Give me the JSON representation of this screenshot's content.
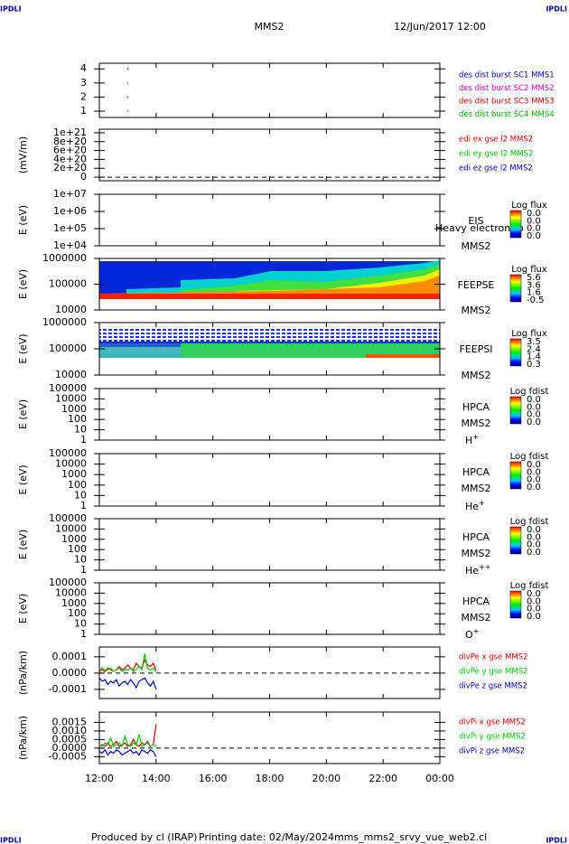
{
  "header": {
    "corner_left": "IPDLI",
    "corner_right": "IPDLI",
    "mission": "MMS2",
    "date": "12/Jun/2017 12:00"
  },
  "footer": {
    "producer": "Produced by cl (IRAP)",
    "printing": "Printing date: 02/May/2024",
    "file": "mms_mms2_srvy_vue_web2.cl",
    "corner_left": "IPDLI",
    "corner_right": "IPDLI"
  },
  "chart_data": [
    {
      "type": "scatter",
      "ylim": [
        0.55,
        4.4
      ],
      "yticks": [
        1,
        2,
        3,
        4
      ],
      "xlim": [
        12,
        24
      ],
      "series": [
        {
          "name": "des dist burst SC1 MMS1",
          "color": "#0000cc",
          "x": [
            13.0
          ],
          "values": [
            4
          ]
        },
        {
          "name": "des dist burst SC2 MMS2",
          "color": "#cc00cc",
          "x": [
            13.0
          ],
          "values": [
            3
          ]
        },
        {
          "name": "des dist burst SC3 MMS3",
          "color": "#cc0000",
          "x": [
            13.0
          ],
          "values": [
            2
          ]
        },
        {
          "name": "des dist burst SC4 MMS4",
          "color": "#00b000",
          "x": [
            13.0
          ],
          "values": [
            1
          ]
        }
      ]
    },
    {
      "type": "line",
      "ylabel": "(mV/m)",
      "ylim": [
        -8e+19,
        1.08e+21
      ],
      "zero_line": true,
      "yticks": [
        {
          "value": 1e+21,
          "label": "1e+21"
        },
        {
          "value": 8e+20,
          "label": "8e+20"
        },
        {
          "value": 6e+20,
          "label": "6e+20"
        },
        {
          "value": 4e+20,
          "label": "4e+20"
        },
        {
          "value": 2e+20,
          "label": "2e+20"
        },
        0
      ],
      "series": [
        {
          "name": "edi ex gse l2 MMS2",
          "color": "#dd0000"
        },
        {
          "name": "edi ey gse l2 MMS2",
          "color": "#00bb00"
        },
        {
          "name": "edi ez gse l2 MMS2",
          "color": "#0000cc"
        }
      ]
    },
    {
      "type": "spectrogram",
      "ylabel": "E (eV)",
      "log": true,
      "ylim": [
        10000,
        10000000
      ],
      "yticks": [
        {
          "value": 10000000,
          "label": "1e+07"
        },
        {
          "value": 1000000,
          "label": "1e+06"
        },
        {
          "value": 100000,
          "label": "1e+05"
        },
        {
          "value": 10000,
          "label": "1e+04"
        }
      ],
      "instrument": "EIS",
      "spacecraft": "MMS2",
      "note": "Heavy electron to",
      "colorbar": {
        "title": "Log flux",
        "labels": [
          "0.0",
          "0.0",
          "0.0",
          "0.0"
        ]
      }
    },
    {
      "type": "spectrogram",
      "ylabel": "E (eV)",
      "log": true,
      "ylim": [
        10000,
        1000000
      ],
      "yticks": [
        1000000,
        100000,
        10000
      ],
      "instrument": "FEEPSE",
      "spacecraft": "MMS2",
      "colorbar": {
        "title": "Log flux",
        "labels": [
          "5.6",
          "3.6",
          "1.6",
          "-0.5"
        ]
      }
    },
    {
      "type": "spectrogram",
      "ylabel": "E (eV)",
      "log": true,
      "ylim": [
        10000,
        1000000
      ],
      "yticks": [
        1000000,
        100000,
        10000
      ],
      "instrument": "FEEPSI",
      "spacecraft": "MMS2",
      "colorbar": {
        "title": "Log flux",
        "labels": [
          "3.5",
          "2.4",
          "1.4",
          "0.3"
        ]
      }
    },
    {
      "type": "spectrogram",
      "ylabel": "E (eV)",
      "log": true,
      "ylim": [
        1,
        100000
      ],
      "yticks": [
        100000,
        10000,
        1000,
        100,
        10,
        1
      ],
      "instrument": "HPCA",
      "spacecraft": "MMS2",
      "species": {
        "base": "H",
        "charge": "+"
      },
      "colorbar": {
        "title": "Log fdist",
        "labels": [
          "0.0",
          "0.0",
          "0.0",
          "0.0"
        ]
      }
    },
    {
      "type": "spectrogram",
      "ylabel": "E (eV)",
      "log": true,
      "ylim": [
        1,
        100000
      ],
      "yticks": [
        100000,
        10000,
        1000,
        100,
        10,
        1
      ],
      "instrument": "HPCA",
      "spacecraft": "MMS2",
      "species": {
        "base": "He",
        "charge": "+"
      },
      "colorbar": {
        "title": "Log fdist",
        "labels": [
          "0.0",
          "0.0",
          "0.0",
          "0.0"
        ]
      }
    },
    {
      "type": "spectrogram",
      "ylabel": "E (eV)",
      "log": true,
      "ylim": [
        1,
        100000
      ],
      "yticks": [
        100000,
        10000,
        1000,
        100,
        10,
        1
      ],
      "instrument": "HPCA",
      "spacecraft": "MMS2",
      "species": {
        "base": "He",
        "charge": "++"
      },
      "colorbar": {
        "title": "Log fdist",
        "labels": [
          "0.0",
          "0.0",
          "0.0",
          "0.0"
        ]
      }
    },
    {
      "type": "spectrogram",
      "ylabel": "E (eV)",
      "log": true,
      "ylim": [
        1,
        100000
      ],
      "yticks": [
        100000,
        10000,
        1000,
        100,
        10,
        1
      ],
      "instrument": "HPCA",
      "spacecraft": "MMS2",
      "species": {
        "base": "O",
        "charge": "+"
      },
      "colorbar": {
        "title": "Log fdist",
        "labels": [
          "0.0",
          "0.0",
          "0.0",
          "0.0"
        ]
      }
    },
    {
      "type": "line",
      "ylabel": "(nPa/km)",
      "ylim": [
        -0.000156,
        0.00016
      ],
      "zero_line": true,
      "xlim": [
        12,
        24
      ],
      "yticks": [
        0.0001,
        {
          "value": 0,
          "label": "0.0000"
        },
        -0.0001
      ],
      "x": [
        12.0,
        12.1,
        12.2,
        12.3,
        12.4,
        12.5,
        12.6,
        12.7,
        12.8,
        12.9,
        13.0,
        13.1,
        13.2,
        13.3,
        13.4,
        13.5,
        13.6,
        13.7,
        13.8,
        13.9,
        14.0
      ],
      "series": [
        {
          "name": "divPe x gse MMS2",
          "color": "#dd0000",
          "values": [
            1e-05,
            2e-05,
            1e-05,
            3e-05,
            2e-05,
            1e-05,
            2e-05,
            4e-05,
            2e-05,
            3e-05,
            5e-05,
            3e-05,
            2e-05,
            6e-05,
            4e-05,
            3e-05,
            8e-05,
            5e-05,
            4e-05,
            6e-05,
            2e-05
          ]
        },
        {
          "name": "divPe y gse MMS2",
          "color": "#00cc00",
          "values": [
            2e-05,
            3e-05,
            2e-05,
            2e-05,
            3e-05,
            1e-05,
            2e-05,
            3e-05,
            1e-05,
            2e-05,
            2e-05,
            3e-05,
            1e-05,
            2e-05,
            4e-05,
            2e-05,
            0.00012,
            3e-05,
            2e-05,
            3e-05,
            1e-05
          ]
        },
        {
          "name": "divPe z gse MMS2",
          "color": "#0000cc",
          "values": [
            -3e-05,
            -5e-05,
            -4e-05,
            -7e-05,
            -5e-05,
            -6e-05,
            -4e-05,
            -8e-05,
            -6e-05,
            -5e-05,
            -7e-05,
            -4e-05,
            -6e-05,
            -9e-05,
            -5e-05,
            -4e-05,
            -3e-05,
            -6e-05,
            -8e-05,
            -5e-05,
            -0.0001
          ]
        }
      ]
    },
    {
      "type": "line",
      "ylabel": "(nPa/km)",
      "ylim": [
        -0.0009,
        0.0021
      ],
      "zero_line": true,
      "xlim": [
        12,
        24
      ],
      "yticks": [
        0.0015,
        {
          "value": 0.001,
          "label": "0.0010"
        },
        0.0005,
        {
          "value": 0,
          "label": "0.0000"
        },
        -0.0005
      ],
      "xticks": [
        {
          "value": 12,
          "label": "12:00"
        },
        {
          "value": 14,
          "label": "14:00"
        },
        {
          "value": 16,
          "label": "16:00"
        },
        {
          "value": 18,
          "label": "18:00"
        },
        {
          "value": 20,
          "label": "20:00"
        },
        {
          "value": 22,
          "label": "22:00"
        },
        {
          "value": 24,
          "label": "00:00"
        }
      ],
      "x": [
        12.0,
        12.1,
        12.2,
        12.3,
        12.4,
        12.5,
        12.6,
        12.7,
        12.8,
        12.9,
        13.0,
        13.1,
        13.2,
        13.3,
        13.4,
        13.5,
        13.6,
        13.7,
        13.8,
        13.9,
        14.0
      ],
      "series": [
        {
          "name": "divPi x gse MMS2",
          "color": "#dd0000",
          "values": [
            0.0001,
            0.0002,
            0.0001,
            0.0003,
            0.0001,
            0.0002,
            0.0004,
            0.0001,
            0.0002,
            0.0003,
            0.0001,
            0.0002,
            0.0005,
            0.0002,
            0.0001,
            0.0003,
            0.0002,
            0.0004,
            0.0001,
            0.0002,
            0.0014
          ]
        },
        {
          "name": "divPi y gse MMS2",
          "color": "#00cc00",
          "values": [
            0.0002,
            0.0001,
            0.0003,
            0.0002,
            0.0006,
            0.0001,
            0.0002,
            0.0003,
            0.0001,
            0.0007,
            0.0002,
            0.0001,
            0.0003,
            0.0002,
            0.0008,
            0.0001,
            0.0002,
            0.0003,
            0.0001,
            0.0002,
            0.0001
          ]
        },
        {
          "name": "divPi z gse MMS2",
          "color": "#0000cc",
          "values": [
            -0.0002,
            -0.0003,
            -0.0001,
            -0.0004,
            -0.0002,
            -0.0003,
            -0.0001,
            -0.0002,
            -0.0004,
            -0.0003,
            -0.0002,
            -0.0001,
            -0.0003,
            -0.0002,
            -0.0004,
            -0.0001,
            -0.0002,
            -0.0003,
            -0.0001,
            -0.0002,
            -0.0005
          ]
        }
      ]
    }
  ]
}
